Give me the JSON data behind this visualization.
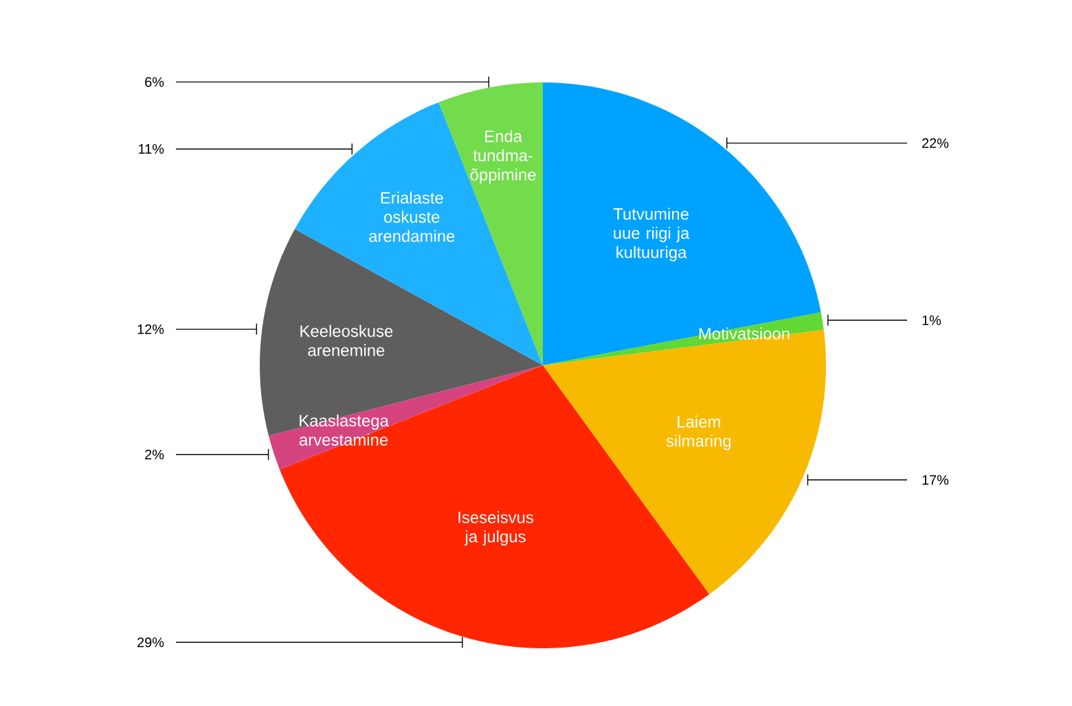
{
  "chart_data": {
    "type": "pie",
    "categories": [
      "Tutvumine uue riigi ja kultuuriga",
      "Motivatsioon",
      "Laiem silmaring",
      "Iseseisvus ja julgus",
      "Kaaslastega arvestamine",
      "Keeleoskuse arenemine",
      "Erialaste oskuste arendamine",
      "Enda tundma-õppimine"
    ],
    "values": [
      22,
      1,
      17,
      29,
      2,
      12,
      11,
      6
    ],
    "value_labels": [
      "22%",
      "1%",
      "17%",
      "29%",
      "2%",
      "12%",
      "11%",
      "6%"
    ],
    "colors": [
      "#00a2ff",
      "#61d836",
      "#f8ba00",
      "#ff2600",
      "#d5447f",
      "#5e5e5e",
      "#1eb1ff",
      "#72dc4c"
    ]
  }
}
